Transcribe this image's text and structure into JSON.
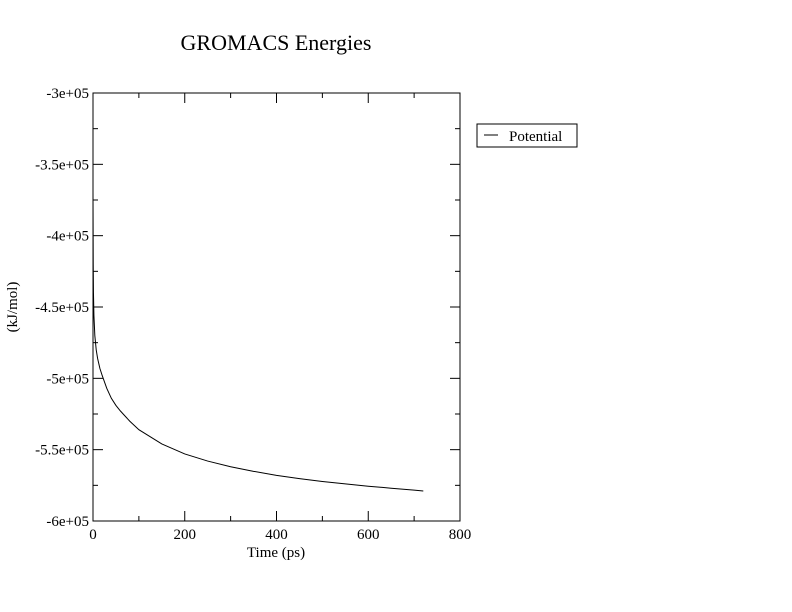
{
  "chart_data": {
    "type": "line",
    "title": "GROMACS Energies",
    "xlabel": "Time (ps)",
    "ylabel": "(kJ/mol)",
    "xlim": [
      0,
      800
    ],
    "ylim": [
      -600000,
      -300000
    ],
    "x_ticks": [
      0,
      200,
      400,
      600,
      800
    ],
    "x_tick_labels": [
      "0",
      "200",
      "400",
      "600",
      "800"
    ],
    "y_ticks": [
      -600000,
      -550000,
      -500000,
      -450000,
      -400000,
      -350000,
      -300000
    ],
    "y_tick_labels": [
      "-6e+05",
      "-5.5e+05",
      "-5e+05",
      "-4.5e+05",
      "-4e+05",
      "-3.5e+05",
      "-3e+05"
    ],
    "grid": false,
    "legend_position": "top-right, outside plot area",
    "series": [
      {
        "name": "Potential",
        "color": "#000000",
        "x": [
          0,
          0.5,
          1,
          2,
          4,
          7,
          10,
          15,
          20,
          30,
          40,
          50,
          60,
          80,
          100,
          125,
          150,
          175,
          200,
          250,
          300,
          350,
          400,
          450,
          500,
          550,
          600,
          650,
          700,
          720
        ],
        "y": [
          -370000,
          -420000,
          -440000,
          -456000,
          -470000,
          -480000,
          -486000,
          -493000,
          -498000,
          -507000,
          -514000,
          -519000,
          -523000,
          -530000,
          -536000,
          -541000,
          -546000,
          -549500,
          -553000,
          -558000,
          -562000,
          -565200,
          -568000,
          -570300,
          -572300,
          -574000,
          -575600,
          -577000,
          -578400,
          -579000
        ]
      }
    ]
  }
}
